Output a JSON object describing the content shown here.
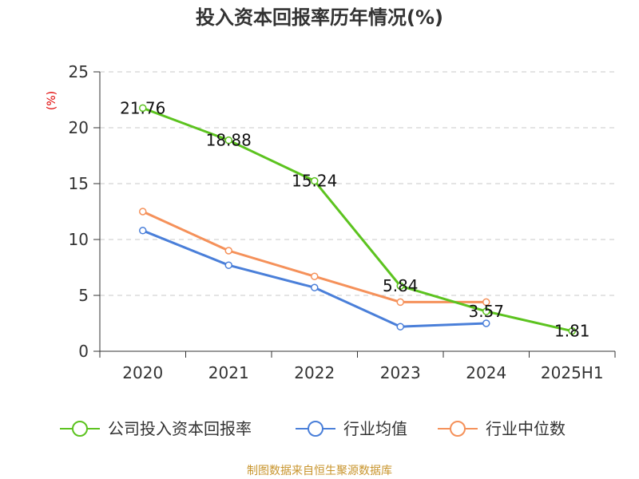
{
  "chart_data": {
    "type": "line",
    "title": "投入资本回报率历年情况(%)",
    "ylabel": "(%)",
    "categories": [
      "2020",
      "2021",
      "2022",
      "2023",
      "2024",
      "2025H1"
    ],
    "ylim": [
      0,
      25
    ],
    "yticks": [
      0,
      5,
      10,
      15,
      20,
      25
    ],
    "grid": true,
    "legend_position": "bottom",
    "series": [
      {
        "name": "公司投入资本回报率",
        "color": "#5cc31f",
        "values": [
          21.76,
          18.88,
          15.24,
          5.84,
          3.57,
          1.81
        ],
        "labels": [
          "21.76",
          "18.88",
          "15.24",
          "5.84",
          "3.57",
          "1.81"
        ]
      },
      {
        "name": "行业均值",
        "color": "#4a7fd9",
        "values": [
          10.8,
          7.7,
          5.7,
          2.2,
          2.5,
          null
        ]
      },
      {
        "name": "行业中位数",
        "color": "#f5915a",
        "values": [
          12.5,
          9.0,
          6.7,
          4.4,
          4.4,
          null
        ]
      }
    ]
  },
  "footer": {
    "source": "制图数据来自恒生聚源数据库"
  }
}
